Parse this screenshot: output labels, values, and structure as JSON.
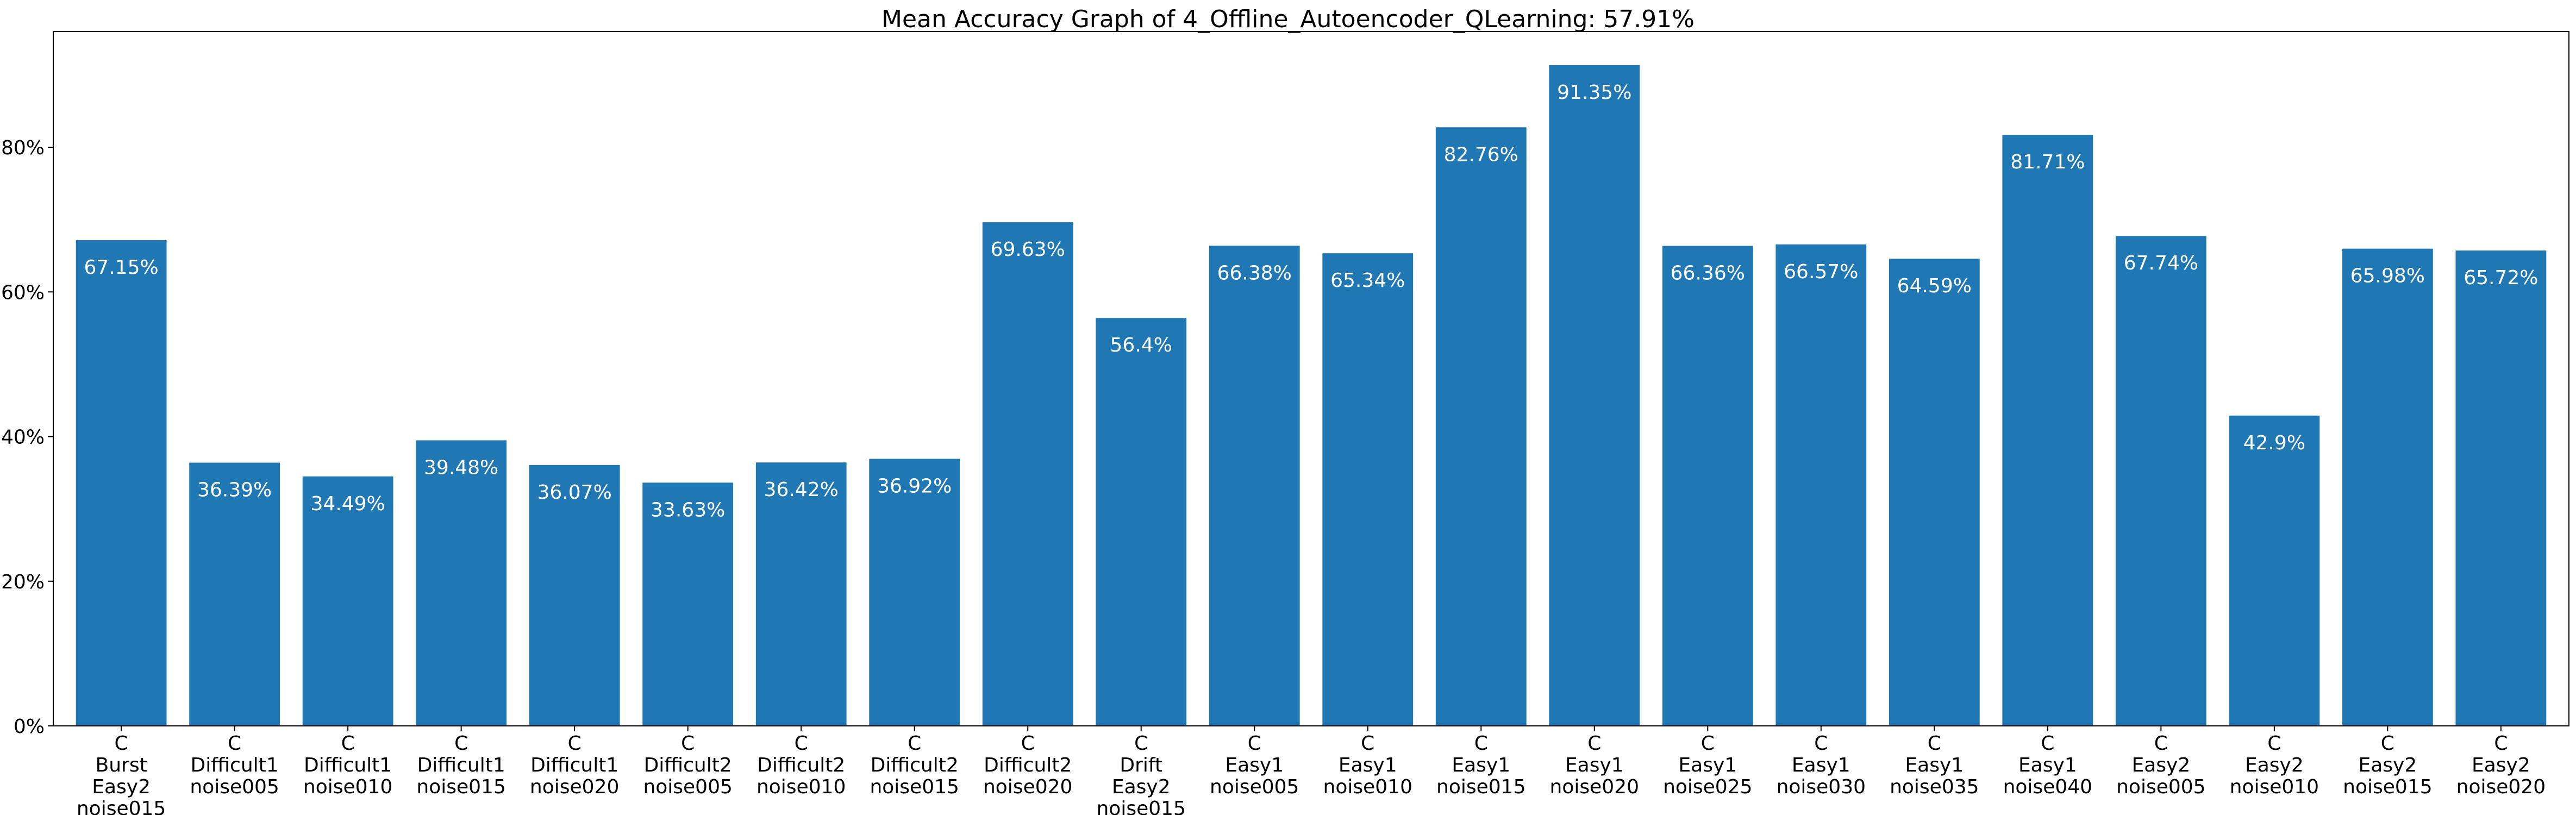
{
  "chart_data": {
    "type": "bar",
    "title": "Mean Accuracy Graph of 4_Offline_Autoencoder_QLearning: 57.91%",
    "xlabel": "",
    "ylabel": "",
    "ylim": [
      0,
      96
    ],
    "yticks": [
      0,
      20,
      40,
      60,
      80
    ],
    "ytick_labels": [
      "0%",
      "20%",
      "40%",
      "60%",
      "80%"
    ],
    "grid": false,
    "bar_color": "#1f77b4",
    "label_color": "#ffffff",
    "categories": [
      [
        "C",
        "Burst",
        "Easy2",
        "noise015"
      ],
      [
        "C",
        "Difficult1",
        "noise005"
      ],
      [
        "C",
        "Difficult1",
        "noise010"
      ],
      [
        "C",
        "Difficult1",
        "noise015"
      ],
      [
        "C",
        "Difficult1",
        "noise020"
      ],
      [
        "C",
        "Difficult2",
        "noise005"
      ],
      [
        "C",
        "Difficult2",
        "noise010"
      ],
      [
        "C",
        "Difficult2",
        "noise015"
      ],
      [
        "C",
        "Difficult2",
        "noise020"
      ],
      [
        "C",
        "Drift",
        "Easy2",
        "noise015"
      ],
      [
        "C",
        "Easy1",
        "noise005"
      ],
      [
        "C",
        "Easy1",
        "noise010"
      ],
      [
        "C",
        "Easy1",
        "noise015"
      ],
      [
        "C",
        "Easy1",
        "noise020"
      ],
      [
        "C",
        "Easy1",
        "noise025"
      ],
      [
        "C",
        "Easy1",
        "noise030"
      ],
      [
        "C",
        "Easy1",
        "noise035"
      ],
      [
        "C",
        "Easy1",
        "noise040"
      ],
      [
        "C",
        "Easy2",
        "noise005"
      ],
      [
        "C",
        "Easy2",
        "noise010"
      ],
      [
        "C",
        "Easy2",
        "noise015"
      ],
      [
        "C",
        "Easy2",
        "noise020"
      ]
    ],
    "values": [
      67.15,
      36.39,
      34.49,
      39.48,
      36.07,
      33.63,
      36.42,
      36.92,
      69.63,
      56.4,
      66.38,
      65.34,
      82.76,
      91.35,
      66.36,
      66.57,
      64.59,
      81.71,
      67.74,
      42.9,
      65.98,
      65.72
    ],
    "value_labels": [
      "67.15%",
      "36.39%",
      "34.49%",
      "39.48%",
      "36.07%",
      "33.63%",
      "36.42%",
      "36.92%",
      "69.63%",
      "56.4%",
      "66.38%",
      "65.34%",
      "82.76%",
      "91.35%",
      "66.36%",
      "66.57%",
      "64.59%",
      "81.71%",
      "67.74%",
      "42.9%",
      "65.98%",
      "65.72%"
    ]
  }
}
